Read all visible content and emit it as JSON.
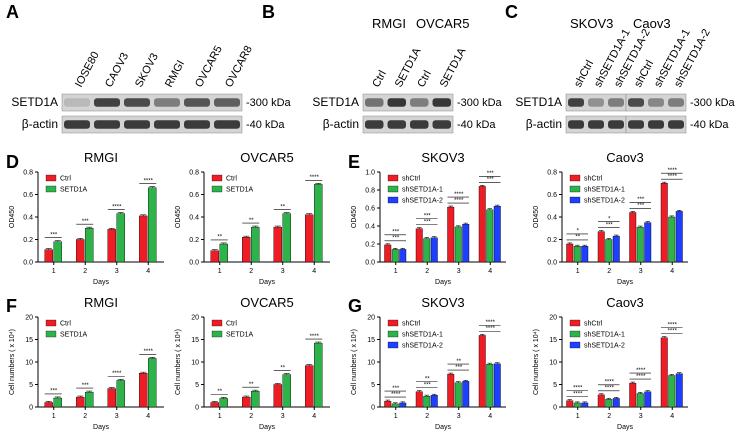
{
  "panels": {
    "A": "A",
    "B": "B",
    "C": "C",
    "D": "D",
    "E": "E",
    "F": "F",
    "G": "G"
  },
  "colors": {
    "red": "#ee1c24",
    "green": "#2db34a",
    "blue": "#1f3fff"
  },
  "blots": {
    "A": {
      "lanes": [
        "IOSE80",
        "CAOV3",
        "SKOV3",
        "RMGI",
        "OVCAR5",
        "OVCAR8"
      ],
      "rows": [
        "SETD1A",
        "β-actin"
      ],
      "sizes": [
        "-300 kDa",
        "-40 kDa"
      ],
      "setd1a_intensity": [
        0.25,
        0.85,
        0.8,
        0.55,
        0.75,
        0.7
      ]
    },
    "B": {
      "groups": [
        "RMGI",
        "OVCAR5"
      ],
      "lanes": [
        "Ctrl",
        "SETD1A",
        "Ctrl",
        "SETD1A"
      ],
      "rows": [
        "SETD1A",
        "β-actin"
      ],
      "sizes": [
        "-300 kDa",
        "-40 kDa"
      ],
      "setd1a_intensity": [
        0.6,
        0.9,
        0.55,
        0.9
      ]
    },
    "C": {
      "groups": [
        "SKOV3",
        "Caov3"
      ],
      "lanes": [
        "shCtrl",
        "shSETD1A-1",
        "shSETD1A-2",
        "shCtrl",
        "shSETD1A-1",
        "shSETD1A-2"
      ],
      "rows": [
        "SETD1A",
        "β-actin"
      ],
      "sizes": [
        "-300 kDa",
        "-40 kDa"
      ],
      "setd1a_intensity": [
        0.85,
        0.45,
        0.55,
        0.8,
        0.5,
        0.55
      ]
    }
  },
  "chart_data": [
    {
      "id": "D1",
      "type": "bar",
      "title": "RMGI",
      "xlabel": "Days",
      "ylabel": "OD450",
      "categories": [
        "1",
        "2",
        "3",
        "4"
      ],
      "ylim": [
        0,
        0.8
      ],
      "yticks": [
        0,
        0.2,
        0.4,
        0.6,
        0.8
      ],
      "ytick_labels": [
        "0.0",
        "0.2",
        "0.4",
        "0.6",
        "0.8"
      ],
      "series": [
        {
          "name": "Ctrl",
          "color": "#ee1c24",
          "values": [
            0.11,
            0.2,
            0.29,
            0.41
          ]
        },
        {
          "name": "SETD1A",
          "color": "#2db34a",
          "values": [
            0.18,
            0.3,
            0.43,
            0.66
          ]
        }
      ],
      "sig": [
        [
          "***"
        ],
        [
          "***"
        ],
        [
          "****"
        ],
        [
          "****"
        ]
      ]
    },
    {
      "id": "D2",
      "type": "bar",
      "title": "OVCAR5",
      "xlabel": "Days",
      "ylabel": "OD450",
      "categories": [
        "1",
        "2",
        "3",
        "4"
      ],
      "ylim": [
        0,
        0.8
      ],
      "yticks": [
        0,
        0.2,
        0.4,
        0.6,
        0.8
      ],
      "ytick_labels": [
        "0.0",
        "0.2",
        "0.4",
        "0.6",
        "0.8"
      ],
      "series": [
        {
          "name": "Ctrl",
          "color": "#ee1c24",
          "values": [
            0.1,
            0.22,
            0.31,
            0.42
          ]
        },
        {
          "name": "SETD1A",
          "color": "#2db34a",
          "values": [
            0.16,
            0.31,
            0.43,
            0.69
          ]
        }
      ],
      "sig": [
        [
          "**"
        ],
        [
          "**"
        ],
        [
          "**"
        ],
        [
          "****"
        ]
      ]
    },
    {
      "id": "E1",
      "type": "bar",
      "title": "SKOV3",
      "xlabel": "Days",
      "ylabel": "OD450",
      "categories": [
        "1",
        "2",
        "3",
        "4"
      ],
      "ylim": [
        0,
        1.0
      ],
      "yticks": [
        0,
        0.2,
        0.4,
        0.6,
        0.8,
        1.0
      ],
      "ytick_labels": [
        "0.0",
        "0.2",
        "0.4",
        "0.6",
        "0.8",
        "1.0"
      ],
      "series": [
        {
          "name": "shCtrl",
          "color": "#ee1c24",
          "values": [
            0.19,
            0.37,
            0.61,
            0.84
          ]
        },
        {
          "name": "shSETD1A-1",
          "color": "#2db34a",
          "values": [
            0.14,
            0.26,
            0.39,
            0.58
          ]
        },
        {
          "name": "shSETD1A-2",
          "color": "#1f3fff",
          "values": [
            0.14,
            0.27,
            0.42,
            0.62
          ]
        }
      ],
      "sig": [
        [
          "***",
          "***"
        ],
        [
          "***",
          "***"
        ],
        [
          "****",
          "****"
        ],
        [
          "***",
          "***"
        ]
      ]
    },
    {
      "id": "E2",
      "type": "bar",
      "title": "Caov3",
      "xlabel": "Days",
      "ylabel": "OD450",
      "categories": [
        "1",
        "2",
        "3",
        "4"
      ],
      "ylim": [
        0,
        0.8
      ],
      "yticks": [
        0,
        0.2,
        0.4,
        0.6,
        0.8
      ],
      "ytick_labels": [
        "0.0",
        "0.2",
        "0.4",
        "0.6",
        "0.8"
      ],
      "series": [
        {
          "name": "shCtrl",
          "color": "#ee1c24",
          "values": [
            0.16,
            0.27,
            0.44,
            0.7
          ]
        },
        {
          "name": "shSETD1A-1",
          "color": "#2db34a",
          "values": [
            0.14,
            0.2,
            0.31,
            0.4
          ]
        },
        {
          "name": "shSETD1A-2",
          "color": "#1f3fff",
          "values": [
            0.14,
            0.23,
            0.35,
            0.45
          ]
        }
      ],
      "sig": [
        [
          "**",
          "*"
        ],
        [
          "***",
          "*"
        ],
        [
          "***",
          "***"
        ],
        [
          "****",
          "****"
        ]
      ]
    },
    {
      "id": "F1",
      "type": "bar",
      "title": "RMGI",
      "xlabel": "Days",
      "ylabel": "Cell numbers ( x 10⁴)",
      "categories": [
        "1",
        "2",
        "3",
        "4"
      ],
      "ylim": [
        0,
        20
      ],
      "yticks": [
        0,
        5,
        10,
        15,
        20
      ],
      "ytick_labels": [
        "0",
        "5",
        "10",
        "15",
        "20"
      ],
      "series": [
        {
          "name": "Ctrl",
          "color": "#ee1c24",
          "values": [
            1.0,
            2.2,
            4.1,
            7.5
          ]
        },
        {
          "name": "SETD1A",
          "color": "#2db34a",
          "values": [
            2.0,
            3.3,
            5.9,
            10.8
          ]
        }
      ],
      "sig": [
        [
          "***"
        ],
        [
          "***"
        ],
        [
          "****"
        ],
        [
          "****"
        ]
      ]
    },
    {
      "id": "F2",
      "type": "bar",
      "title": "OVCAR5",
      "xlabel": "Days",
      "ylabel": "Cell numbers ( x 10⁴)",
      "categories": [
        "1",
        "2",
        "3",
        "4"
      ],
      "ylim": [
        0,
        20
      ],
      "yticks": [
        0,
        5,
        10,
        15,
        20
      ],
      "ytick_labels": [
        "0",
        "5",
        "10",
        "15",
        "20"
      ],
      "series": [
        {
          "name": "Ctrl",
          "color": "#ee1c24",
          "values": [
            1.0,
            2.2,
            5.0,
            9.2
          ]
        },
        {
          "name": "SETD1A",
          "color": "#2db34a",
          "values": [
            1.9,
            3.5,
            7.2,
            14.2
          ]
        }
      ],
      "sig": [
        [
          "**"
        ],
        [
          "**"
        ],
        [
          "**"
        ],
        [
          "****"
        ]
      ]
    },
    {
      "id": "G1",
      "type": "bar",
      "title": "SKOV3",
      "xlabel": "Days",
      "ylabel": "Cell numbers ( x 10⁴)",
      "categories": [
        "1",
        "2",
        "3",
        "4"
      ],
      "ylim": [
        0,
        20
      ],
      "yticks": [
        0,
        5,
        10,
        15,
        20
      ],
      "ytick_labels": [
        "0",
        "5",
        "10",
        "15",
        "20"
      ],
      "series": [
        {
          "name": "shCtrl",
          "color": "#ee1c24",
          "values": [
            1.3,
            3.4,
            7.3,
            15.9
          ]
        },
        {
          "name": "shSETD1A-1",
          "color": "#2db34a",
          "values": [
            0.7,
            2.4,
            5.4,
            9.5
          ]
        },
        {
          "name": "shSETD1A-2",
          "color": "#1f3fff",
          "values": [
            0.9,
            2.6,
            5.7,
            9.6
          ]
        }
      ],
      "sig": [
        [
          "****",
          "***"
        ],
        [
          "***",
          "**"
        ],
        [
          "***",
          "**"
        ],
        [
          "****",
          "****"
        ]
      ]
    },
    {
      "id": "G2",
      "type": "bar",
      "title": "Caov3",
      "xlabel": "Days",
      "ylabel": "Cell numbers ( x 10⁴)",
      "categories": [
        "1",
        "2",
        "3",
        "4"
      ],
      "ylim": [
        0,
        20
      ],
      "yticks": [
        0,
        5,
        10,
        15,
        20
      ],
      "ytick_labels": [
        "0",
        "5",
        "10",
        "15",
        "20"
      ],
      "series": [
        {
          "name": "shCtrl",
          "color": "#ee1c24",
          "values": [
            1.4,
            2.7,
            5.3,
            15.4
          ]
        },
        {
          "name": "shSETD1A-1",
          "color": "#2db34a",
          "values": [
            0.9,
            1.7,
            3.0,
            7.0
          ]
        },
        {
          "name": "shSETD1A-2",
          "color": "#1f3fff",
          "values": [
            0.9,
            1.9,
            3.4,
            7.4
          ]
        }
      ],
      "sig": [
        [
          "****",
          "****"
        ],
        [
          "****",
          "****"
        ],
        [
          "****",
          "****"
        ],
        [
          "****",
          "****"
        ]
      ]
    }
  ]
}
